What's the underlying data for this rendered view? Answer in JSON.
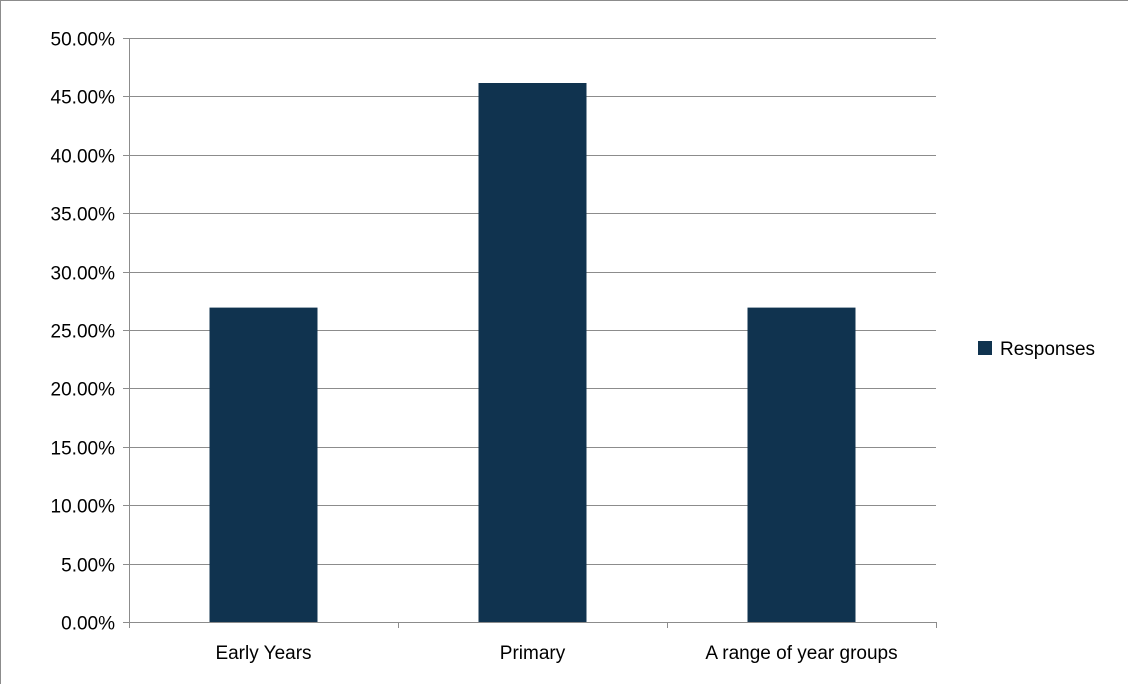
{
  "chart_data": {
    "type": "bar",
    "title": "",
    "xlabel": "",
    "ylabel": "",
    "categories": [
      "Early Years",
      "Primary",
      "A range of year groups"
    ],
    "series": [
      {
        "name": "Responses",
        "values": [
          26.92,
          46.15,
          26.92
        ],
        "color": "#10334f"
      }
    ],
    "ylim": [
      0,
      50
    ],
    "ytick_step": 5,
    "ytick_format": "percent_2dp",
    "grid": "horizontal",
    "legend_placement": "right",
    "colors": {
      "grid": "#8c8c8c",
      "axis": "#8c8c8c",
      "text": "#000000"
    }
  }
}
